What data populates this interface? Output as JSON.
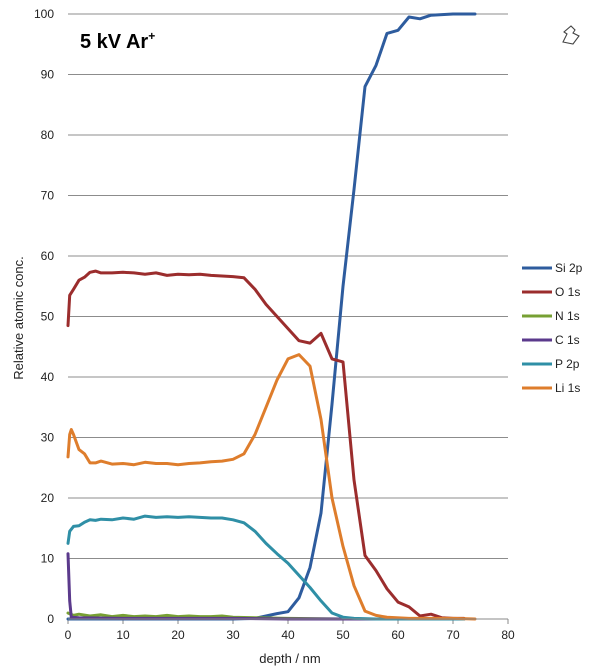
{
  "chart_data": {
    "type": "line",
    "title": "5 kV Ar",
    "title_superscript": "+",
    "xlabel": "depth / nm",
    "ylabel": "Relative atomic conc.",
    "xlim": [
      0,
      80
    ],
    "ylim": [
      0,
      100
    ],
    "xticks": [
      "0",
      "10",
      "20",
      "30",
      "40",
      "50",
      "60",
      "70",
      "80"
    ],
    "yticks": [
      "0",
      "10",
      "20",
      "30",
      "40",
      "50",
      "60",
      "70",
      "80",
      "90",
      "100"
    ],
    "grid": "horizontal",
    "legend_position": "right",
    "series": [
      {
        "name": "Si 2p",
        "color": "#2e5c9e",
        "points": [
          [
            0,
            0
          ],
          [
            10,
            0
          ],
          [
            20,
            0
          ],
          [
            30,
            0
          ],
          [
            34,
            0.1
          ],
          [
            36,
            0.5
          ],
          [
            38,
            0.9
          ],
          [
            40,
            1.2
          ],
          [
            42,
            3.5
          ],
          [
            44,
            8.5
          ],
          [
            46,
            17.5
          ],
          [
            48,
            35.5
          ],
          [
            50,
            55
          ],
          [
            52,
            71
          ],
          [
            54,
            88
          ],
          [
            56,
            91.5
          ],
          [
            58,
            96.8
          ],
          [
            60,
            97.3
          ],
          [
            62,
            99.5
          ],
          [
            64,
            99.2
          ],
          [
            66,
            99.8
          ],
          [
            70,
            100
          ],
          [
            74,
            100
          ]
        ]
      },
      {
        "name": "O 1s",
        "color": "#9b2d2d",
        "points": [
          [
            0,
            48.5
          ],
          [
            0.3,
            53.5
          ],
          [
            1,
            54.5
          ],
          [
            2,
            56
          ],
          [
            3,
            56.5
          ],
          [
            4,
            57.3
          ],
          [
            5,
            57.5
          ],
          [
            6,
            57.2
          ],
          [
            8,
            57.2
          ],
          [
            10,
            57.3
          ],
          [
            12,
            57.2
          ],
          [
            14,
            57
          ],
          [
            16,
            57.2
          ],
          [
            18,
            56.8
          ],
          [
            20,
            57
          ],
          [
            22,
            56.9
          ],
          [
            24,
            57
          ],
          [
            26,
            56.8
          ],
          [
            28,
            56.7
          ],
          [
            30,
            56.6
          ],
          [
            32,
            56.4
          ],
          [
            34,
            54.5
          ],
          [
            36,
            52
          ],
          [
            38,
            50
          ],
          [
            40,
            48
          ],
          [
            42,
            46
          ],
          [
            44,
            45.6
          ],
          [
            46,
            47.2
          ],
          [
            48,
            43
          ],
          [
            50,
            42.5
          ],
          [
            52,
            23
          ],
          [
            54,
            10.5
          ],
          [
            56,
            8
          ],
          [
            58,
            5
          ],
          [
            60,
            2.8
          ],
          [
            62,
            2
          ],
          [
            64,
            0.5
          ],
          [
            66,
            0.8
          ],
          [
            68,
            0.2
          ],
          [
            70,
            0.1
          ],
          [
            72,
            0.1
          ]
        ]
      },
      {
        "name": "N 1s",
        "color": "#77a033",
        "points": [
          [
            0,
            1
          ],
          [
            1,
            0.6
          ],
          [
            2,
            0.8
          ],
          [
            4,
            0.5
          ],
          [
            6,
            0.7
          ],
          [
            8,
            0.4
          ],
          [
            10,
            0.6
          ],
          [
            12,
            0.4
          ],
          [
            14,
            0.5
          ],
          [
            16,
            0.4
          ],
          [
            18,
            0.6
          ],
          [
            20,
            0.4
          ],
          [
            22,
            0.5
          ],
          [
            24,
            0.4
          ],
          [
            26,
            0.4
          ],
          [
            28,
            0.5
          ],
          [
            30,
            0.3
          ],
          [
            34,
            0.2
          ],
          [
            40,
            0.1
          ],
          [
            50,
            0
          ],
          [
            60,
            0
          ],
          [
            72,
            0
          ]
        ]
      },
      {
        "name": "C 1s",
        "color": "#5b3a8c",
        "points": [
          [
            0,
            10.8
          ],
          [
            0.3,
            3
          ],
          [
            0.6,
            0.3
          ],
          [
            2,
            0.2
          ],
          [
            10,
            0.1
          ],
          [
            20,
            0.1
          ],
          [
            30,
            0.1
          ],
          [
            40,
            0
          ],
          [
            50,
            0
          ],
          [
            60,
            0
          ],
          [
            72,
            0
          ]
        ]
      },
      {
        "name": "P 2p",
        "color": "#2f8fa6",
        "points": [
          [
            0,
            12.5
          ],
          [
            0.3,
            14.5
          ],
          [
            1,
            15.3
          ],
          [
            2,
            15.4
          ],
          [
            3,
            16
          ],
          [
            4,
            16.4
          ],
          [
            5,
            16.3
          ],
          [
            6,
            16.5
          ],
          [
            8,
            16.4
          ],
          [
            10,
            16.7
          ],
          [
            12,
            16.5
          ],
          [
            14,
            17
          ],
          [
            16,
            16.8
          ],
          [
            18,
            16.9
          ],
          [
            20,
            16.8
          ],
          [
            22,
            16.9
          ],
          [
            24,
            16.8
          ],
          [
            26,
            16.7
          ],
          [
            28,
            16.7
          ],
          [
            30,
            16.4
          ],
          [
            32,
            15.9
          ],
          [
            34,
            14.5
          ],
          [
            36,
            12.5
          ],
          [
            38,
            10.8
          ],
          [
            40,
            9.2
          ],
          [
            42,
            7.2
          ],
          [
            44,
            5.2
          ],
          [
            46,
            3
          ],
          [
            48,
            1
          ],
          [
            50,
            0.3
          ],
          [
            52,
            0.1
          ],
          [
            56,
            0
          ],
          [
            60,
            0
          ],
          [
            72,
            0
          ]
        ]
      },
      {
        "name": "Li 1s",
        "color": "#de7d2c",
        "points": [
          [
            0,
            26.8
          ],
          [
            0.3,
            30.5
          ],
          [
            0.6,
            31.3
          ],
          [
            1,
            30.5
          ],
          [
            2,
            28
          ],
          [
            3,
            27.3
          ],
          [
            4,
            25.8
          ],
          [
            5,
            25.8
          ],
          [
            6,
            26.1
          ],
          [
            8,
            25.6
          ],
          [
            10,
            25.7
          ],
          [
            12,
            25.5
          ],
          [
            14,
            25.9
          ],
          [
            16,
            25.7
          ],
          [
            18,
            25.7
          ],
          [
            20,
            25.5
          ],
          [
            22,
            25.7
          ],
          [
            24,
            25.8
          ],
          [
            26,
            26
          ],
          [
            28,
            26.1
          ],
          [
            30,
            26.4
          ],
          [
            32,
            27.3
          ],
          [
            34,
            30.5
          ],
          [
            36,
            35
          ],
          [
            38,
            39.5
          ],
          [
            40,
            43
          ],
          [
            42,
            43.7
          ],
          [
            44,
            41.8
          ],
          [
            46,
            33
          ],
          [
            48,
            20
          ],
          [
            50,
            12
          ],
          [
            52,
            5.5
          ],
          [
            54,
            1.3
          ],
          [
            56,
            0.6
          ],
          [
            58,
            0.3
          ],
          [
            62,
            0.1
          ],
          [
            66,
            0.1
          ],
          [
            70,
            0.1
          ],
          [
            74,
            0
          ]
        ]
      }
    ]
  }
}
